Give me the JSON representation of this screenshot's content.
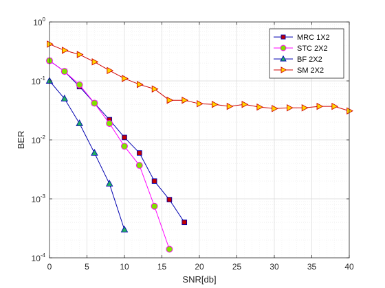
{
  "chart_data": {
    "type": "line",
    "title": "",
    "xlabel": "SNR[db]",
    "ylabel": "BER",
    "xlim": [
      0,
      40
    ],
    "ylim": [
      0.0001,
      1
    ],
    "yscale": "log",
    "grid": true,
    "legend_position": "top-right",
    "x_ticks": [
      0,
      5,
      10,
      15,
      20,
      25,
      30,
      35,
      40
    ],
    "y_ticks": [
      {
        "value": 1,
        "base": "10",
        "exp": "0"
      },
      {
        "value": 0.1,
        "base": "10",
        "exp": "-1"
      },
      {
        "value": 0.01,
        "base": "10",
        "exp": "-2"
      },
      {
        "value": 0.001,
        "base": "10",
        "exp": "-3"
      },
      {
        "value": 0.0001,
        "base": "10",
        "exp": "-4"
      }
    ],
    "series": [
      {
        "name": "MRC 1X2",
        "color": "#0000b0",
        "marker": "square",
        "marker_fill": "#c00000",
        "x": [
          0,
          2,
          4,
          6,
          8,
          10,
          12,
          14,
          16,
          18
        ],
        "y": [
          0.22,
          0.145,
          0.08,
          0.042,
          0.022,
          0.011,
          0.006,
          0.002,
          0.00097,
          0.0004
        ]
      },
      {
        "name": "STC 2X2",
        "color": "#ff00ff",
        "marker": "circle",
        "marker_fill": "#80e000",
        "x": [
          0,
          2,
          4,
          6,
          8,
          10,
          12,
          14,
          16
        ],
        "y": [
          0.22,
          0.145,
          0.086,
          0.042,
          0.019,
          0.0078,
          0.0037,
          0.00075,
          0.00014
        ]
      },
      {
        "name": "BF 2X2",
        "color": "#0000b0",
        "marker": "triangle-up",
        "marker_fill": "#20b060",
        "x": [
          0,
          2,
          4,
          6,
          8,
          10
        ],
        "y": [
          0.1,
          0.05,
          0.019,
          0.006,
          0.0018,
          0.0003
        ]
      },
      {
        "name": "SM 2X2",
        "color": "#d00000",
        "marker": "triangle-right",
        "marker_fill": "#ffd700",
        "x": [
          0,
          2,
          4,
          6,
          8,
          10,
          12,
          14,
          16,
          18,
          20,
          22,
          24,
          26,
          28,
          30,
          32,
          34,
          36,
          38,
          40
        ],
        "y": [
          0.42,
          0.33,
          0.28,
          0.21,
          0.15,
          0.11,
          0.087,
          0.073,
          0.047,
          0.047,
          0.041,
          0.04,
          0.037,
          0.04,
          0.036,
          0.034,
          0.035,
          0.035,
          0.037,
          0.037,
          0.031
        ]
      }
    ]
  }
}
